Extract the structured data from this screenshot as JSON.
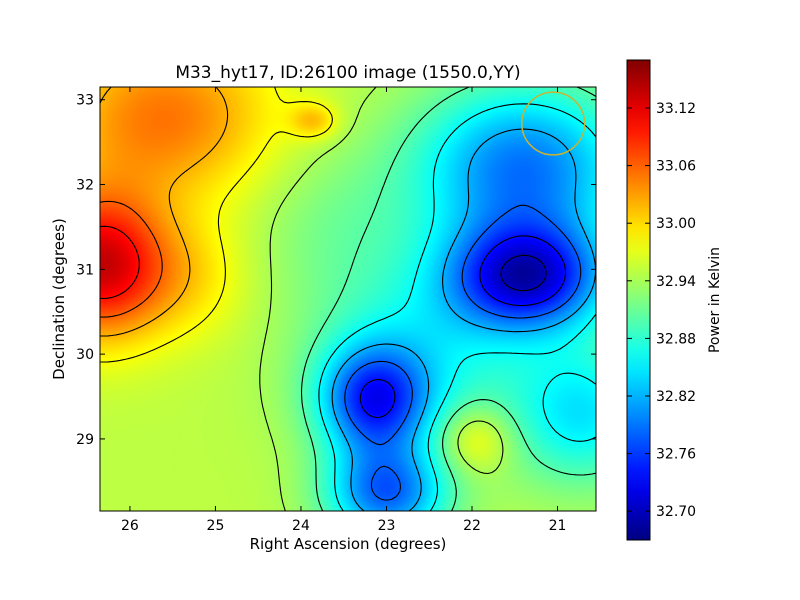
{
  "chart_data": {
    "type": "heatmap",
    "title": "M33_hyt17, ID:26100 image (1550.0,YY)",
    "xlabel": "Right Ascension (degrees)",
    "ylabel": "Declination (degrees)",
    "colorbar_label": "Power in Kelvin",
    "colormap": "jet",
    "x_axis_inverted": true,
    "xlim": [
      26.35,
      20.55
    ],
    "ylim": [
      28.15,
      33.15
    ],
    "x_ticks": [
      26,
      25,
      24,
      23,
      22,
      21
    ],
    "y_ticks": [
      29,
      30,
      31,
      32,
      33
    ],
    "x_tick_labels": [
      "26",
      "25",
      "24",
      "23",
      "22",
      "21"
    ],
    "y_tick_labels": [
      "29",
      "30",
      "31",
      "32",
      "33"
    ],
    "value_range": [
      32.67,
      33.17
    ],
    "colorbar_ticks": [
      32.7,
      32.76,
      32.82,
      32.88,
      32.94,
      33.0,
      33.06,
      33.12
    ],
    "colorbar_tick_labels": [
      "32.70",
      "32.76",
      "32.82",
      "32.88",
      "32.94",
      "33.00",
      "33.06",
      "33.12"
    ],
    "beam": {
      "ra": 21.05,
      "dec": 32.72,
      "radius_deg": 0.37,
      "color": "#c8b432"
    },
    "background_level": 32.95,
    "features": [
      {
        "ra": 26.35,
        "dec": 31.05,
        "sx": 0.55,
        "sy": 0.6,
        "amp": 0.18
      },
      {
        "ra": 25.6,
        "dec": 32.8,
        "sx": 0.9,
        "sy": 0.7,
        "amp": 0.1
      },
      {
        "ra": 25.3,
        "dec": 30.9,
        "sx": 0.5,
        "sy": 0.5,
        "amp": 0.04
      },
      {
        "ra": 23.85,
        "dec": 32.75,
        "sx": 0.2,
        "sy": 0.15,
        "amp": 0.06
      },
      {
        "ra": 23.6,
        "dec": 31.55,
        "sx": 0.7,
        "sy": 0.7,
        "amp": -0.03
      },
      {
        "ra": 21.35,
        "dec": 30.9,
        "sx": 0.65,
        "sy": 0.45,
        "amp": -0.22
      },
      {
        "ra": 21.4,
        "dec": 32.2,
        "sx": 0.9,
        "sy": 0.7,
        "amp": -0.16
      },
      {
        "ra": 23.15,
        "dec": 29.45,
        "sx": 0.45,
        "sy": 0.45,
        "amp": -0.17
      },
      {
        "ra": 22.6,
        "dec": 30.0,
        "sx": 0.9,
        "sy": 0.8,
        "amp": -0.08
      },
      {
        "ra": 23.0,
        "dec": 28.35,
        "sx": 0.5,
        "sy": 0.4,
        "amp": -0.16
      },
      {
        "ra": 21.95,
        "dec": 29.0,
        "sx": 0.3,
        "sy": 0.28,
        "amp": 0.06
      },
      {
        "ra": 20.7,
        "dec": 29.3,
        "sx": 0.6,
        "sy": 0.6,
        "amp": -0.1
      }
    ],
    "contour_levels": [
      32.7,
      32.74,
      32.78,
      32.82,
      32.86,
      32.9,
      32.94,
      32.98,
      33.02,
      33.06,
      33.1,
      33.14
    ]
  }
}
